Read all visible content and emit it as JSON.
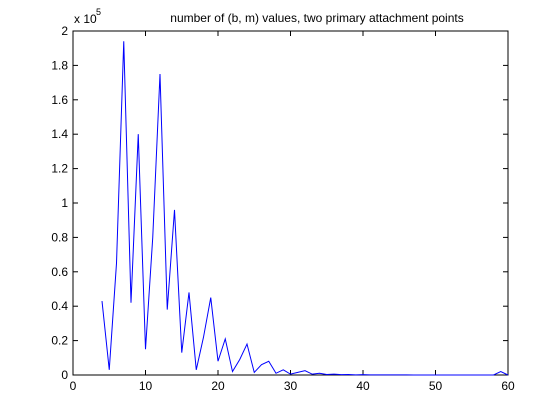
{
  "chart_data": {
    "type": "line",
    "title": "number of (b, m) values, two primary attachment points",
    "xlabel": "",
    "ylabel": "",
    "xlim": [
      0,
      60
    ],
    "ylim": [
      0,
      200000
    ],
    "y_scale_label": {
      "base": "x 10",
      "exponent": "5"
    },
    "x_ticks": [
      0,
      10,
      20,
      30,
      40,
      50,
      60
    ],
    "x_tick_labels": [
      "0",
      "10",
      "20",
      "30",
      "40",
      "50",
      "60"
    ],
    "y_ticks": [
      0,
      20000,
      40000,
      60000,
      80000,
      100000,
      120000,
      140000,
      160000,
      180000,
      200000
    ],
    "y_tick_labels": [
      "0",
      "0.2",
      "0.4",
      "0.6",
      "0.8",
      "1",
      "1.2",
      "1.4",
      "1.6",
      "1.8",
      "2"
    ],
    "grid": false,
    "line_color": "#0000ff",
    "series": [
      {
        "x": [
          4,
          5,
          6,
          7,
          8,
          9,
          10,
          11,
          12,
          13,
          14,
          15,
          16,
          17,
          18,
          19,
          20,
          21,
          22,
          23,
          24,
          25,
          26,
          27,
          28,
          29,
          30,
          31,
          32,
          33,
          34,
          35,
          36,
          37,
          38,
          39,
          40,
          41,
          42,
          43,
          44,
          45,
          46,
          47,
          48,
          49,
          50,
          51,
          52,
          53,
          54,
          55,
          56,
          57,
          58,
          59,
          60
        ],
        "y": [
          43000,
          3000,
          65000,
          194000,
          42000,
          140000,
          15000,
          80000,
          175000,
          38000,
          96000,
          13000,
          48000,
          3000,
          22000,
          45000,
          8000,
          21000,
          2000,
          9000,
          18000,
          1500,
          6000,
          8000,
          1000,
          3000,
          500,
          1500,
          2500,
          500,
          1000,
          300,
          500,
          200,
          300,
          100,
          200,
          100,
          100,
          50,
          100,
          50,
          50,
          30,
          30,
          20,
          20,
          10,
          10,
          10,
          10,
          10,
          10,
          5,
          5,
          2000,
          5
        ]
      }
    ]
  }
}
